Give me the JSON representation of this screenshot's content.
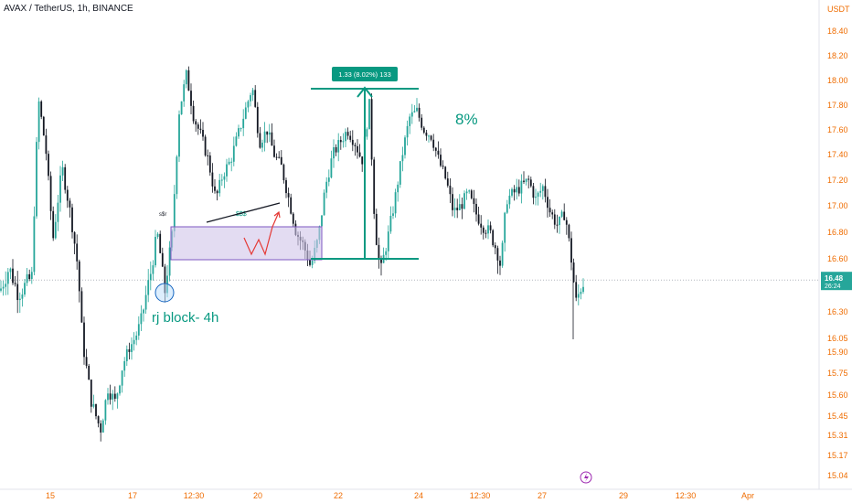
{
  "header": {
    "symbol_label": "AVAX / TetherUS, 1h, BINANCE"
  },
  "chart_data": {
    "type": "candlestick",
    "title": "AVAX / TetherUS, 1h, BINANCE",
    "y_axis": {
      "unit": "USDT",
      "ticks": [
        "18.40",
        "18.20",
        "18.00",
        "17.80",
        "17.60",
        "17.40",
        "17.20",
        "17.00",
        "16.80",
        "16.60",
        "16.30",
        "16.05",
        "15.90",
        "15.75",
        "15.60",
        "15.45",
        "15.31",
        "15.17",
        "15.04"
      ],
      "range": [
        15.0,
        18.6
      ]
    },
    "x_axis": {
      "ticks": [
        "15",
        "17",
        "12:30",
        "20",
        "22",
        "24",
        "12:30",
        "27",
        "29",
        "12:30",
        "Apr"
      ]
    },
    "current_price": {
      "value": "16.48",
      "countdown": "26:24",
      "color": "#26a69a"
    },
    "price_path": [
      [
        0,
        16.42
      ],
      [
        10,
        16.55
      ],
      [
        20,
        16.4
      ],
      [
        35,
        16.5
      ],
      [
        42,
        17.85
      ],
      [
        50,
        17.45
      ],
      [
        58,
        16.75
      ],
      [
        68,
        17.3
      ],
      [
        78,
        16.9
      ],
      [
        86,
        16.5
      ],
      [
        92,
        15.9
      ],
      [
        100,
        15.55
      ],
      [
        110,
        15.35
      ],
      [
        118,
        15.65
      ],
      [
        126,
        15.55
      ],
      [
        134,
        15.8
      ],
      [
        142,
        15.95
      ],
      [
        150,
        16.1
      ],
      [
        158,
        16.35
      ],
      [
        166,
        16.55
      ],
      [
        172,
        16.8
      ],
      [
        180,
        16.4
      ],
      [
        188,
        16.75
      ],
      [
        196,
        17.75
      ],
      [
        204,
        18.05
      ],
      [
        212,
        17.7
      ],
      [
        220,
        17.55
      ],
      [
        228,
        17.35
      ],
      [
        236,
        17.05
      ],
      [
        244,
        17.25
      ],
      [
        252,
        17.35
      ],
      [
        260,
        17.55
      ],
      [
        268,
        17.75
      ],
      [
        276,
        17.95
      ],
      [
        284,
        17.5
      ],
      [
        292,
        17.6
      ],
      [
        300,
        17.4
      ],
      [
        308,
        17.3
      ],
      [
        316,
        17.05
      ],
      [
        324,
        16.8
      ],
      [
        332,
        16.7
      ],
      [
        340,
        16.55
      ],
      [
        348,
        16.75
      ],
      [
        356,
        17.15
      ],
      [
        364,
        17.4
      ],
      [
        372,
        17.5
      ],
      [
        380,
        17.6
      ],
      [
        388,
        17.5
      ],
      [
        396,
        17.35
      ],
      [
        404,
        17.8
      ],
      [
        410,
        16.85
      ],
      [
        416,
        16.5
      ],
      [
        424,
        16.75
      ],
      [
        432,
        17.05
      ],
      [
        440,
        17.4
      ],
      [
        448,
        17.7
      ],
      [
        456,
        17.75
      ],
      [
        464,
        17.6
      ],
      [
        472,
        17.55
      ],
      [
        480,
        17.35
      ],
      [
        488,
        17.2
      ],
      [
        496,
        16.95
      ],
      [
        504,
        17.0
      ],
      [
        512,
        17.1
      ],
      [
        520,
        16.95
      ],
      [
        528,
        16.85
      ],
      [
        536,
        16.8
      ],
      [
        544,
        16.65
      ],
      [
        548,
        16.55
      ],
      [
        554,
        17.05
      ],
      [
        562,
        17.1
      ],
      [
        570,
        17.15
      ],
      [
        578,
        17.2
      ],
      [
        586,
        17.05
      ],
      [
        594,
        17.15
      ],
      [
        602,
        16.95
      ],
      [
        610,
        16.85
      ],
      [
        618,
        16.95
      ],
      [
        624,
        16.65
      ],
      [
        630,
        16.35
      ],
      [
        636,
        16.45
      ],
      [
        640,
        16.48
      ]
    ],
    "annotations": {
      "range_label": "1.33 (8.02%) 133",
      "big_label": "8%",
      "block_label": "rj block- 4h",
      "small_label_1": "$$$",
      "small_label_2": "s$r",
      "colors": {
        "up": "#26a69a",
        "down": "#131722",
        "zone_fill": "#d1c4e9",
        "zone_border": "#7e57c2",
        "accent": "#089981",
        "arrow_red": "#e53935"
      }
    }
  }
}
